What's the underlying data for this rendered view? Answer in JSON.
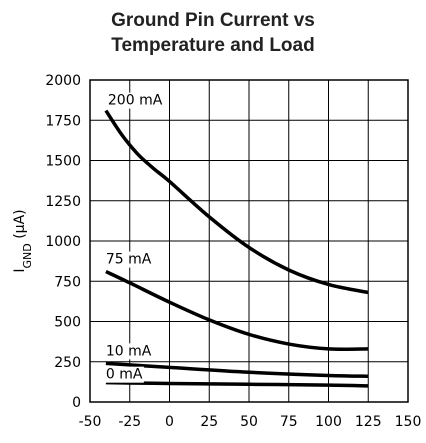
{
  "chart_data": {
    "type": "line",
    "title_lines": [
      "Ground Pin Current vs",
      "Temperature and Load"
    ],
    "ylabel": {
      "main": "I",
      "sub": "GND",
      "unit": " (μA)"
    },
    "xlabel": "",
    "xlim": [
      -50,
      150
    ],
    "ylim": [
      0,
      2000
    ],
    "x_ticks": [
      "-50",
      "-25",
      "0",
      "25",
      "50",
      "75",
      "100",
      "125",
      "150"
    ],
    "y_ticks": [
      "0",
      "250",
      "500",
      "750",
      "1000",
      "1250",
      "1500",
      "1750",
      "2000"
    ],
    "grid": true,
    "series": [
      {
        "name": "200 mA",
        "x": [
          -40,
          -30,
          -20,
          -10,
          0,
          25,
          50,
          75,
          100,
          125
        ],
        "y": [
          1810,
          1660,
          1540,
          1450,
          1370,
          1150,
          960,
          820,
          730,
          680
        ]
      },
      {
        "name": "75 mA",
        "x": [
          -40,
          -25,
          0,
          25,
          50,
          75,
          100,
          125
        ],
        "y": [
          810,
          740,
          620,
          510,
          420,
          360,
          330,
          330
        ]
      },
      {
        "name": "10 mA",
        "x": [
          -40,
          0,
          50,
          100,
          125
        ],
        "y": [
          240,
          215,
          185,
          165,
          160
        ]
      },
      {
        "name": "0 mA",
        "x": [
          -40,
          0,
          50,
          100,
          125
        ],
        "y": [
          120,
          115,
          110,
          105,
          100
        ]
      }
    ]
  }
}
